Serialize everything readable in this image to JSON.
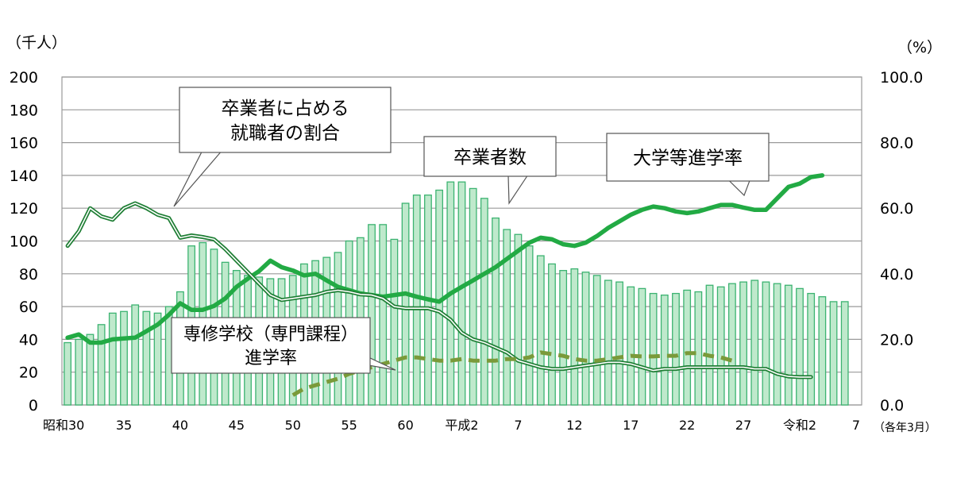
{
  "chart_data": {
    "type": "bar+line",
    "left_unit": "（千人）",
    "right_unit": "（%）",
    "left_ticks": [
      "0",
      "20",
      "40",
      "60",
      "80",
      "100",
      "120",
      "140",
      "160",
      "180",
      "200"
    ],
    "right_ticks": [
      "0.0",
      "20.0",
      "40.0",
      "60.0",
      "80.0",
      "100.0"
    ],
    "ylim_left": [
      0,
      200
    ],
    "ylim_right": [
      0,
      100
    ],
    "x_note": "（各年3月）",
    "x_labels": [
      {
        "i": 0,
        "text": "昭和30"
      },
      {
        "i": 5,
        "text": "35"
      },
      {
        "i": 10,
        "text": "40"
      },
      {
        "i": 15,
        "text": "45"
      },
      {
        "i": 20,
        "text": "50"
      },
      {
        "i": 25,
        "text": "55"
      },
      {
        "i": 30,
        "text": "60"
      },
      {
        "i": 35,
        "text": "平成2"
      },
      {
        "i": 40,
        "text": "7"
      },
      {
        "i": 45,
        "text": "12"
      },
      {
        "i": 50,
        "text": "17"
      },
      {
        "i": 55,
        "text": "22"
      },
      {
        "i": 60,
        "text": "27"
      },
      {
        "i": 65,
        "text": "令和2"
      },
      {
        "i": 70,
        "text": "7"
      }
    ],
    "series": [
      {
        "name": "卒業者数",
        "axis": "left",
        "kind": "bar",
        "color": "#3cb371",
        "values": [
          38,
          40,
          43,
          49,
          56,
          57,
          61,
          57,
          56,
          60,
          69,
          97,
          99,
          95,
          87,
          82,
          79,
          78,
          77,
          77,
          79,
          86,
          88,
          90,
          93,
          100,
          102,
          110,
          110,
          101,
          123,
          128,
          128,
          131,
          136,
          136,
          132,
          126,
          114,
          107,
          104,
          97,
          91,
          86,
          82,
          83,
          81,
          79,
          76,
          75,
          72,
          71,
          68,
          67,
          68,
          70,
          69,
          73,
          72,
          74,
          75,
          76,
          75,
          74,
          73,
          71,
          68,
          66,
          63,
          63
        ]
      },
      {
        "name": "大学等進学率",
        "axis": "right",
        "kind": "line",
        "color": "#22aa44",
        "values": [
          20.5,
          21.5,
          19,
          19,
          20,
          20.3,
          20.5,
          22.5,
          24.5,
          27.5,
          31,
          29,
          29,
          30.2,
          32.5,
          36,
          38.5,
          40.8,
          44,
          42,
          41,
          39.5,
          40,
          38,
          36,
          35,
          34,
          33.5,
          33,
          33.5,
          34,
          33,
          32.2,
          31.5,
          34,
          36,
          38,
          40,
          42,
          44.5,
          47,
          49.5,
          51,
          50.5,
          49,
          48.5,
          49.5,
          51.5,
          54,
          56,
          58,
          59.5,
          60.5,
          60,
          59,
          58.5,
          59,
          60,
          61,
          61,
          60.2,
          59.5,
          59.5,
          63,
          66.5,
          67.5,
          69.5,
          70
        ]
      },
      {
        "name": "卒業者に占める就職者の割合",
        "axis": "right",
        "kind": "double-line",
        "color": "#1e7e34",
        "values": [
          48.5,
          53,
          60,
          57.5,
          56.5,
          60,
          61.5,
          60,
          58,
          57,
          51,
          51.7,
          51.2,
          50.5,
          47.5,
          44,
          40.5,
          37,
          33.5,
          32,
          32.5,
          33,
          33.5,
          34.5,
          35,
          34.5,
          33.7,
          33.5,
          32.5,
          30,
          29.5,
          29.5,
          29.5,
          28.5,
          26,
          22,
          20,
          19,
          17.5,
          16,
          13.5,
          12.5,
          11.5,
          11,
          11,
          11.5,
          12,
          12.5,
          13,
          13,
          12.5,
          11.5,
          10.5,
          11,
          11,
          11.5,
          11.5,
          11.5,
          11.5,
          11.5,
          11.5,
          11,
          11,
          9.5,
          8.7,
          8.5,
          8.5
        ]
      },
      {
        "name": "専修学校（専門課程）進学率",
        "axis": "right",
        "kind": "dashed-line",
        "color": "#7a9a3a",
        "start_index": 20,
        "values": [
          3,
          5,
          6,
          7,
          8,
          9.5,
          10.5,
          11.5,
          12.5,
          13.5,
          14.5,
          14.5,
          14,
          13.5,
          13.5,
          14,
          13.5,
          13.5,
          13.5,
          14,
          14,
          14.5,
          16,
          15.5,
          15,
          14,
          13.5,
          13.5,
          14,
          14.5,
          15,
          14.8,
          14.8,
          15,
          15,
          15.8,
          15.8,
          15,
          14.5,
          13.5
        ]
      }
    ],
    "annotations": {
      "employment": {
        "lines": [
          "卒業者に占める",
          "就職者の割合"
        ]
      },
      "graduates": {
        "lines": [
          "卒業者数"
        ]
      },
      "university": {
        "lines": [
          "大学等進学率"
        ]
      },
      "vocational": {
        "lines": [
          "専修学校（専門課程）",
          "進学率"
        ]
      }
    }
  }
}
